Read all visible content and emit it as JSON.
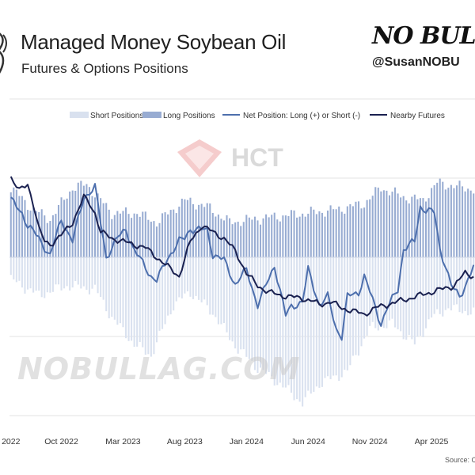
{
  "header": {
    "title": "Managed Money Soybean Oil",
    "subtitle": "Futures & Options Positions",
    "brand": "NO BUL",
    "handle": "@SusanNOBU"
  },
  "source": "Source: CF",
  "watermarks": {
    "hct": "HCT",
    "nobull": "NOBULLAG.COM"
  },
  "colors": {
    "short": "#d9e1ef",
    "long": "#98acd2",
    "net": "#4d6fad",
    "futures": "#1a2150"
  },
  "chart_data": {
    "type": "bar",
    "legend_position": "top",
    "legend": [
      "Short Positions",
      "Long Positions",
      "Net Position: Long (+) or Short (-)",
      "Nearby Futures"
    ],
    "x_tick_labels": [
      "2022",
      "Oct 2022",
      "Mar 2023",
      "Aug 2023",
      "Jan 2024",
      "Jun 2024",
      "Nov 2024",
      "Apr 2025"
    ],
    "x_tick_positions": [
      0,
      18,
      40,
      62,
      84,
      106,
      128,
      150
    ],
    "weeks": 166,
    "ylim": [
      -100,
      100
    ],
    "grid": true,
    "long_keypoints": [
      [
        0,
        44
      ],
      [
        8,
        30
      ],
      [
        14,
        24
      ],
      [
        22,
        44
      ],
      [
        27,
        46
      ],
      [
        36,
        28
      ],
      [
        45,
        28
      ],
      [
        52,
        22
      ],
      [
        62,
        36
      ],
      [
        70,
        32
      ],
      [
        78,
        22
      ],
      [
        86,
        24
      ],
      [
        96,
        26
      ],
      [
        106,
        28
      ],
      [
        116,
        30
      ],
      [
        126,
        34
      ],
      [
        132,
        44
      ],
      [
        140,
        38
      ],
      [
        147,
        36
      ],
      [
        152,
        47
      ],
      [
        158,
        45
      ],
      [
        165,
        43
      ]
    ],
    "short_keypoints": [
      [
        0,
        -14
      ],
      [
        10,
        -24
      ],
      [
        20,
        -18
      ],
      [
        30,
        -20
      ],
      [
        36,
        -38
      ],
      [
        44,
        -55
      ],
      [
        50,
        -62
      ],
      [
        58,
        -30
      ],
      [
        64,
        -22
      ],
      [
        72,
        -35
      ],
      [
        80,
        -56
      ],
      [
        88,
        -70
      ],
      [
        96,
        -80
      ],
      [
        104,
        -92
      ],
      [
        110,
        -80
      ],
      [
        120,
        -72
      ],
      [
        128,
        -45
      ],
      [
        136,
        -42
      ],
      [
        144,
        -55
      ],
      [
        150,
        -38
      ],
      [
        156,
        -32
      ],
      [
        165,
        -35
      ]
    ],
    "net_keypoints": [
      [
        0,
        36
      ],
      [
        4,
        28
      ],
      [
        6,
        20
      ],
      [
        10,
        12
      ],
      [
        14,
        1
      ],
      [
        18,
        24
      ],
      [
        22,
        10
      ],
      [
        26,
        38
      ],
      [
        30,
        44
      ],
      [
        34,
        0
      ],
      [
        38,
        12
      ],
      [
        41,
        18
      ],
      [
        44,
        4
      ],
      [
        48,
        -6
      ],
      [
        50,
        -12
      ],
      [
        52,
        -15
      ],
      [
        56,
        0
      ],
      [
        60,
        10
      ],
      [
        62,
        12
      ],
      [
        64,
        18
      ],
      [
        70,
        17
      ],
      [
        72,
        2
      ],
      [
        76,
        -2
      ],
      [
        80,
        -17
      ],
      [
        84,
        -8
      ],
      [
        88,
        -30
      ],
      [
        90,
        -22
      ],
      [
        94,
        -5
      ],
      [
        98,
        -37
      ],
      [
        100,
        -31
      ],
      [
        104,
        -28
      ],
      [
        106,
        -8
      ],
      [
        110,
        -30
      ],
      [
        113,
        -25
      ],
      [
        116,
        -45
      ],
      [
        118,
        -50
      ],
      [
        120,
        -25
      ],
      [
        124,
        -22
      ],
      [
        126,
        -12
      ],
      [
        130,
        -32
      ],
      [
        132,
        -42
      ],
      [
        134,
        -33
      ],
      [
        138,
        -20
      ],
      [
        140,
        5
      ],
      [
        144,
        10
      ],
      [
        146,
        32
      ],
      [
        148,
        30
      ],
      [
        151,
        28
      ],
      [
        153,
        5
      ],
      [
        155,
        -5
      ],
      [
        157,
        -18
      ],
      [
        160,
        -25
      ],
      [
        163,
        -14
      ],
      [
        165,
        -6
      ]
    ],
    "futures_keypoints": [
      [
        0,
        51
      ],
      [
        3,
        42
      ],
      [
        6,
        46
      ],
      [
        8,
        34
      ],
      [
        10,
        18
      ],
      [
        12,
        10
      ],
      [
        14,
        8
      ],
      [
        18,
        14
      ],
      [
        22,
        22
      ],
      [
        26,
        38
      ],
      [
        28,
        34
      ],
      [
        30,
        28
      ],
      [
        32,
        16
      ],
      [
        36,
        12
      ],
      [
        40,
        10
      ],
      [
        44,
        8
      ],
      [
        48,
        6
      ],
      [
        52,
        0
      ],
      [
        56,
        -6
      ],
      [
        60,
        -12
      ],
      [
        64,
        10
      ],
      [
        68,
        20
      ],
      [
        72,
        16
      ],
      [
        76,
        12
      ],
      [
        80,
        4
      ],
      [
        84,
        -10
      ],
      [
        88,
        -18
      ],
      [
        92,
        -22
      ],
      [
        96,
        -24
      ],
      [
        100,
        -25
      ],
      [
        104,
        -26
      ],
      [
        108,
        -28
      ],
      [
        110,
        -30
      ],
      [
        114,
        -28
      ],
      [
        118,
        -32
      ],
      [
        122,
        -34
      ],
      [
        126,
        -36
      ],
      [
        130,
        -32
      ],
      [
        134,
        -30
      ],
      [
        138,
        -28
      ],
      [
        142,
        -26
      ],
      [
        146,
        -24
      ],
      [
        150,
        -22
      ],
      [
        154,
        -20
      ],
      [
        158,
        -18
      ],
      [
        162,
        -10
      ],
      [
        165,
        -12
      ]
    ]
  }
}
